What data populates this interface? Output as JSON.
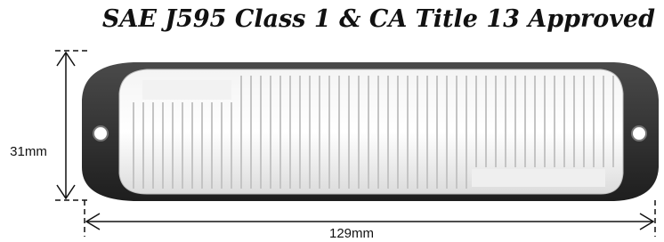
{
  "title": "SAE J595 Class 1 & CA Title 13 Approved",
  "dimensions": {
    "height": "31mm",
    "width": "129mm"
  }
}
